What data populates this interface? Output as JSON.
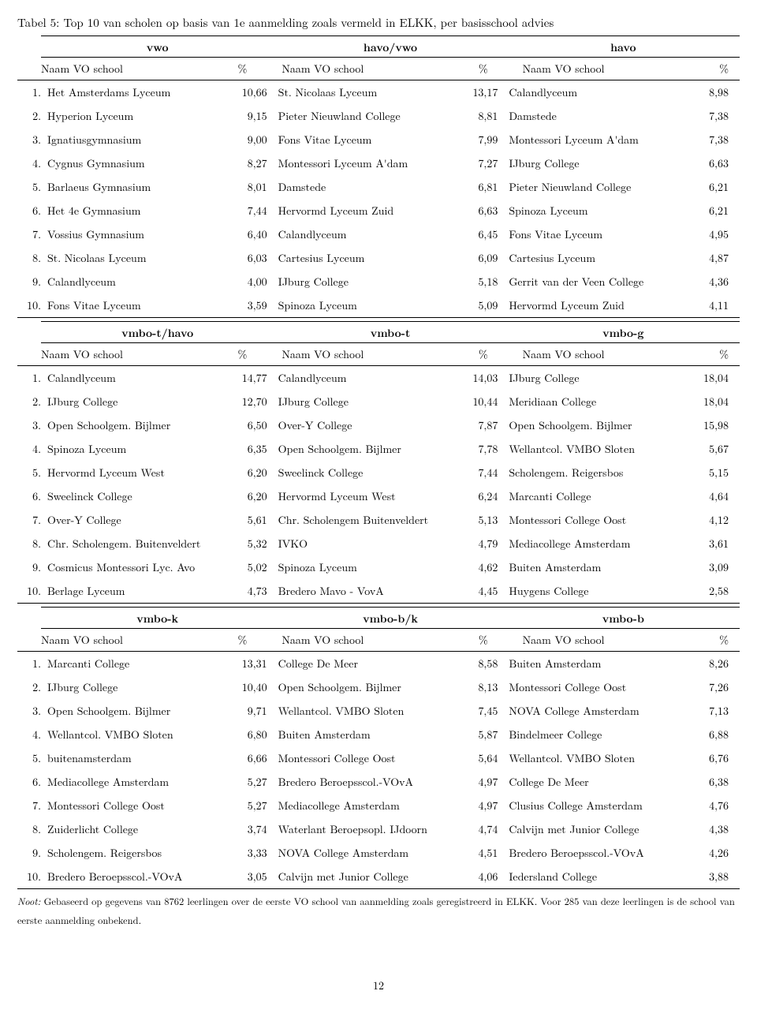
{
  "caption": "Tabel 5: Top 10 van scholen op basis van 1e aanmelding zoals vermeld in ELKK, per basisschool advies",
  "col_header_name": "Naam VO school",
  "col_header_pct": "%",
  "note_label": "Noot:",
  "note_text": " Gebaseerd op gegevens van 8762 leerlingen over de eerste VO school van aanmelding zoals geregistreerd in ELKK. Voor 285 van deze leerlingen is de school van eerste aanmelding onbekend.",
  "page_number": "12",
  "blocks": [
    {
      "headers": [
        "vwo",
        "havo/vwo",
        "havo"
      ],
      "rows": [
        {
          "rank": "1.",
          "c": [
            [
              "Het Amsterdams Lyceum",
              "10,66"
            ],
            [
              "St. Nicolaas Lyceum",
              "13,17"
            ],
            [
              "Calandlyceum",
              "8,98"
            ]
          ]
        },
        {
          "rank": "2.",
          "c": [
            [
              "Hyperion Lyceum",
              "9,15"
            ],
            [
              "Pieter Nieuwland College",
              "8,81"
            ],
            [
              "Damstede",
              "7,38"
            ]
          ]
        },
        {
          "rank": "3.",
          "c": [
            [
              "Ignatiusgymnasium",
              "9,00"
            ],
            [
              "Fons Vitae Lyceum",
              "7,99"
            ],
            [
              "Montessori Lyceum A'dam",
              "7,38"
            ]
          ]
        },
        {
          "rank": "4.",
          "c": [
            [
              "Cygnus Gymnasium",
              "8,27"
            ],
            [
              "Montessori Lyceum A'dam",
              "7,27"
            ],
            [
              "IJburg College",
              "6,63"
            ]
          ]
        },
        {
          "rank": "5.",
          "c": [
            [
              "Barlaeus Gymnasium",
              "8,01"
            ],
            [
              "Damstede",
              "6,81"
            ],
            [
              "Pieter Nieuwland College",
              "6,21"
            ]
          ]
        },
        {
          "rank": "6.",
          "c": [
            [
              "Het 4e Gymnasium",
              "7,44"
            ],
            [
              "Hervormd Lyceum Zuid",
              "6,63"
            ],
            [
              "Spinoza Lyceum",
              "6,21"
            ]
          ]
        },
        {
          "rank": "7.",
          "c": [
            [
              "Vossius Gymnasium",
              "6,40"
            ],
            [
              "Calandlyceum",
              "6,45"
            ],
            [
              "Fons Vitae Lyceum",
              "4,95"
            ]
          ]
        },
        {
          "rank": "8.",
          "c": [
            [
              "St. Nicolaas Lyceum",
              "6,03"
            ],
            [
              "Cartesius Lyceum",
              "6,09"
            ],
            [
              "Cartesius Lyceum",
              "4,87"
            ]
          ]
        },
        {
          "rank": "9.",
          "c": [
            [
              "Calandlyceum",
              "4,00"
            ],
            [
              "IJburg College",
              "5,18"
            ],
            [
              "Gerrit van der Veen College",
              "4,36"
            ]
          ]
        },
        {
          "rank": "10.",
          "c": [
            [
              "Fons Vitae Lyceum",
              "3,59"
            ],
            [
              "Spinoza Lyceum",
              "5,09"
            ],
            [
              "Hervormd Lyceum Zuid",
              "4,11"
            ]
          ]
        }
      ]
    },
    {
      "headers": [
        "vmbo-t/havo",
        "vmbo-t",
        "vmbo-g"
      ],
      "rows": [
        {
          "rank": "1.",
          "c": [
            [
              "Calandlyceum",
              "14,77"
            ],
            [
              "Calandlyceum",
              "14,03"
            ],
            [
              "IJburg College",
              "18,04"
            ]
          ]
        },
        {
          "rank": "2.",
          "c": [
            [
              "IJburg College",
              "12,70"
            ],
            [
              "IJburg College",
              "10,44"
            ],
            [
              "Meridiaan College",
              "18,04"
            ]
          ]
        },
        {
          "rank": "3.",
          "c": [
            [
              "Open Schoolgem. Bijlmer",
              "6,50"
            ],
            [
              "Over-Y College",
              "7,87"
            ],
            [
              "Open Schoolgem. Bijlmer",
              "15,98"
            ]
          ]
        },
        {
          "rank": "4.",
          "c": [
            [
              "Spinoza Lyceum",
              "6,35"
            ],
            [
              "Open Schoolgem. Bijlmer",
              "7,78"
            ],
            [
              "Wellantcol. VMBO Sloten",
              "5,67"
            ]
          ]
        },
        {
          "rank": "5.",
          "c": [
            [
              "Hervormd Lyceum West",
              "6,20"
            ],
            [
              "Sweelinck College",
              "7,44"
            ],
            [
              "Scholengem. Reigersbos",
              "5,15"
            ]
          ]
        },
        {
          "rank": "6.",
          "c": [
            [
              "Sweelinck College",
              "6,20"
            ],
            [
              "Hervormd Lyceum West",
              "6,24"
            ],
            [
              "Marcanti College",
              "4,64"
            ]
          ]
        },
        {
          "rank": "7.",
          "c": [
            [
              "Over-Y College",
              "5,61"
            ],
            [
              "Chr. Scholengem Buitenveldert",
              "5,13"
            ],
            [
              "Montessori College Oost",
              "4,12"
            ]
          ]
        },
        {
          "rank": "8.",
          "c": [
            [
              "Chr. Scholengem. Buitenveldert",
              "5,32"
            ],
            [
              "IVKO",
              "4,79"
            ],
            [
              "Mediacollege Amsterdam",
              "3,61"
            ]
          ]
        },
        {
          "rank": "9.",
          "c": [
            [
              "Cosmicus Montessori Lyc. Avo",
              "5,02"
            ],
            [
              "Spinoza Lyceum",
              "4,62"
            ],
            [
              "Buiten Amsterdam",
              "3,09"
            ]
          ]
        },
        {
          "rank": "10.",
          "c": [
            [
              "Berlage Lyceum",
              "4,73"
            ],
            [
              "Bredero Mavo - VovA",
              "4,45"
            ],
            [
              "Huygens College",
              "2,58"
            ]
          ]
        }
      ]
    },
    {
      "headers": [
        "vmbo-k",
        "vmbo-b/k",
        "vmbo-b"
      ],
      "rows": [
        {
          "rank": "1.",
          "c": [
            [
              "Marcanti College",
              "13,31"
            ],
            [
              "College De Meer",
              "8,58"
            ],
            [
              "Buiten Amsterdam",
              "8,26"
            ]
          ]
        },
        {
          "rank": "2.",
          "c": [
            [
              "IJburg College",
              "10,40"
            ],
            [
              "Open Schoolgem. Bijlmer",
              "8,13"
            ],
            [
              "Montessori College Oost",
              "7,26"
            ]
          ]
        },
        {
          "rank": "3.",
          "c": [
            [
              "Open Schoolgem. Bijlmer",
              "9,71"
            ],
            [
              "Wellantcol. VMBO Sloten",
              "7,45"
            ],
            [
              "NOVA College Amsterdam",
              "7,13"
            ]
          ]
        },
        {
          "rank": "4.",
          "c": [
            [
              "Wellantcol. VMBO Sloten",
              "6,80"
            ],
            [
              "Buiten Amsterdam",
              "5,87"
            ],
            [
              "Bindelmeer College",
              "6,88"
            ]
          ]
        },
        {
          "rank": "5.",
          "c": [
            [
              "buitenamsterdam",
              "6,66"
            ],
            [
              "Montessori College Oost",
              "5,64"
            ],
            [
              "Wellantcol. VMBO Sloten",
              "6,76"
            ]
          ]
        },
        {
          "rank": "6.",
          "c": [
            [
              "Mediacollege Amsterdam",
              "5,27"
            ],
            [
              "Bredero Beroepsscol.-VOvA",
              "4,97"
            ],
            [
              "College De Meer",
              "6,38"
            ]
          ]
        },
        {
          "rank": "7.",
          "c": [
            [
              "Montessori College Oost",
              "5,27"
            ],
            [
              "Mediacollege Amsterdam",
              "4,97"
            ],
            [
              "Clusius College Amsterdam",
              "4,76"
            ]
          ]
        },
        {
          "rank": "8.",
          "c": [
            [
              "Zuiderlicht College",
              "3,74"
            ],
            [
              "Waterlant Beroepsopl. IJdoorn",
              "4,74"
            ],
            [
              "Calvijn met Junior College",
              "4,38"
            ]
          ]
        },
        {
          "rank": "9.",
          "c": [
            [
              "Scholengem. Reigersbos",
              "3,33"
            ],
            [
              "NOVA College Amsterdam",
              "4,51"
            ],
            [
              "Bredero Beroepsscol.-VOvA",
              "4,26"
            ]
          ]
        },
        {
          "rank": "10.",
          "c": [
            [
              "Bredero Beroepsscol.-VOvA",
              "3,05"
            ],
            [
              "Calvijn met Junior College",
              "4,06"
            ],
            [
              "Iedersland College",
              "3,88"
            ]
          ]
        }
      ]
    }
  ]
}
